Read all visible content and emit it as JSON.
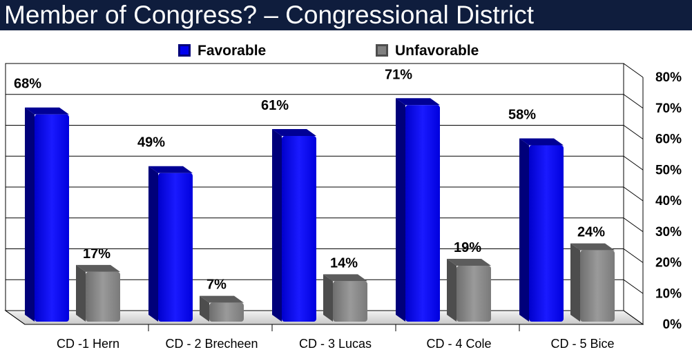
{
  "title": "Member of Congress? – Congressional District",
  "colors": {
    "title_bar_bg": "#0f1d3d",
    "favorable": "#0000ee",
    "unfavorable": "#808080"
  },
  "chart_data": {
    "type": "bar",
    "categories": [
      "CD -1 Hern",
      "CD - 2 Brecheen",
      "CD - 3 Lucas",
      "CD - 4 Cole",
      "CD - 5 Bice"
    ],
    "series": [
      {
        "name": "Favorable",
        "values": [
          68,
          49,
          61,
          71,
          58
        ],
        "labels": [
          "68%",
          "49%",
          "61%",
          "71%",
          "58%"
        ]
      },
      {
        "name": "Unfavorable",
        "values": [
          17,
          7,
          14,
          19,
          24
        ],
        "labels": [
          "17%",
          "7%",
          "14%",
          "19%",
          "24%"
        ]
      }
    ],
    "ylim": [
      0,
      80
    ],
    "yticks": [
      "0%",
      "10%",
      "20%",
      "30%",
      "40%",
      "50%",
      "60%",
      "70%",
      "80%"
    ],
    "grid": true,
    "legend_position": "top",
    "style": "3d-column"
  }
}
